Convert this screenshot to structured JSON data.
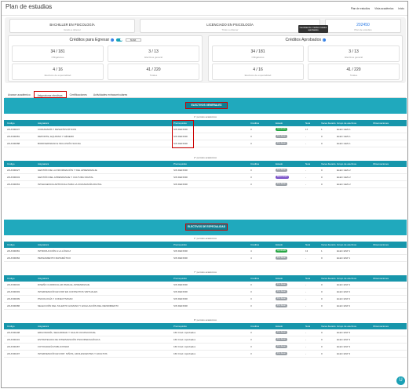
{
  "header": {
    "title": "Plan de estudios",
    "subtitle": "Vista académica",
    "links": [
      "Plan de estudios",
      "Vista académica",
      "Inicio"
    ]
  },
  "degrees": [
    {
      "title": "BACHILLER EN PSICOLOGÍA",
      "sub": "Grado a obtener"
    },
    {
      "title": "LICENCIADO EN PSICOLOGÍA",
      "sub": "Título a obtener"
    },
    {
      "code": "202450",
      "sub": "Plan de estudios"
    }
  ],
  "tooltip": "Cantidad de créditos totales aprobados",
  "credits_to_graduate": {
    "title": "Créditos para Egresar",
    "select": "SUMA",
    "stats": [
      {
        "value": "34 / 181",
        "label": "Obligatorios"
      },
      {
        "value": "3 / 13",
        "label": "Electivos general"
      },
      {
        "value": "4 / 16",
        "label": "Electivos de especialidad"
      },
      {
        "value": "41 / 220",
        "label": "Totales"
      }
    ]
  },
  "credits_approved": {
    "title": "Créditos Aprobados",
    "stats": [
      {
        "value": "34 / 181",
        "label": "Obligatorios"
      },
      {
        "value": "3 / 13",
        "label": "Electivos general"
      },
      {
        "value": "4 / 16",
        "label": "Electivos de especialidad"
      },
      {
        "value": "41 / 220",
        "label": "Totales"
      }
    ]
  },
  "tabs": [
    "Avance académico",
    "Asignaturas electivas",
    "Certificaciones",
    "Actividades extracurriculares"
  ],
  "columns": [
    "Código",
    "Asignatura",
    "Prerrequisito",
    "Créditos",
    "Estado",
    "Nota",
    "Veces llevado",
    "Grupo de electivos",
    "Observaciones"
  ],
  "sections": [
    {
      "category": "ELECTIVOS GENERALES",
      "blocks": [
        {
          "period": "1° período académico",
          "rows": [
            {
              "code": "24UO00037",
              "name": "CIUDADANÍA Y DESAFÍOS ÉTICOS",
              "prereq": "SIN DEFINIR",
              "credits": "3",
              "status": "Aprobado",
              "status_color": "#28a745",
              "grade": "17",
              "times": "1",
              "group": "ELEC GEN 1"
            },
            {
              "code": "24UO00081",
              "name": "DEPORTE, EQUIDAD Y GÉNERO",
              "prereq": "SIN DEFINIR",
              "credits": "3",
              "status": "Por llevar",
              "status_color": "#9aa0a6",
              "grade": "-",
              "times": "0",
              "group": "ELEC GEN 1"
            },
            {
              "code": "24UO00088",
              "name": "BIODIVERSIDAD E INCLUSIÓN SOCIAL",
              "prereq": "SIN DEFINIR",
              "credits": "3",
              "status": "Por llevar",
              "status_color": "#9aa0a6",
              "grade": "-",
              "times": "0",
              "group": "ELEC GEN 1"
            }
          ]
        },
        {
          "period": "2° período académico",
          "rows": [
            {
              "code": "24UO00027",
              "name": "GESTIÓN DE LA INFORMACIÓN Y DEL APRENDIZAJE",
              "prereq": "SIN DEFINIR",
              "credits": "3",
              "status": "Por llevar",
              "status_color": "#9aa0a6",
              "grade": "-",
              "times": "0",
              "group": "ELEC GEN 2"
            },
            {
              "code": "24UO00043",
              "name": "GESTIÓN DEL APRENDIZAJE Y CULTURA DIGITAL",
              "prereq": "SIN DEFINIR",
              "credits": "3",
              "status": "Matriculado",
              "status_color": "#7a52c7",
              "grade": "-",
              "times": "0",
              "group": "ELEC GEN 2"
            },
            {
              "code": "24UO00063",
              "name": "INTELIGENCIA ARTIFICIAL PARA LA CIUDADANÍA DIGITAL",
              "prereq": "SIN DEFINIR",
              "credits": "3",
              "status": "Por llevar",
              "status_color": "#9aa0a6",
              "grade": "-",
              "times": "0",
              "group": "ELEC GEN 2"
            }
          ]
        }
      ]
    },
    {
      "category": "ELECTIVOS DE ESPECIALIDAD",
      "blocks": [
        {
          "period": "1° período académico",
          "rows": [
            {
              "code": "24UO00081",
              "name": "INTRODUCCIÓN A LA LÓGICA",
              "prereq": "SIN DEFINIR",
              "credits": "4",
              "status": "Aprobado",
              "status_color": "#28a745",
              "grade": "13",
              "times": "1",
              "group": "ELEC ESP 1"
            },
            {
              "code": "24UO00084",
              "name": "PENSAMIENTO MATEMÁTICO",
              "prereq": "SIN DEFINIR",
              "credits": "4",
              "status": "Por llevar",
              "status_color": "#9aa0a6",
              "grade": "-",
              "times": "0",
              "group": "ELEC ESP 1"
            }
          ]
        },
        {
          "period": "7° período académico",
          "rows": [
            {
              "code": "24UO00032",
              "name": "DISEÑO CURRICULAR PARA EL APRENDIZAJE",
              "prereq": "SIN DEFINIR",
              "credits": "3",
              "status": "Por llevar",
              "status_color": "#9aa0a6",
              "grade": "-",
              "times": "0",
              "group": "ELEC ESP 2"
            },
            {
              "code": "24UO00093",
              "name": "INTERVENCIÓN EN PAP EN CONTEXTOS VIRTUALES",
              "prereq": "SIN DEFINIR",
              "credits": "3",
              "status": "Por llevar",
              "status_color": "#9aa0a6",
              "grade": "-",
              "times": "0",
              "group": "ELEC ESP 2"
            },
            {
              "code": "24UO00099",
              "name": "PSICOLOGÍA Y CONECTIVIDAD",
              "prereq": "SIN DEFINIR",
              "credits": "3",
              "status": "Por llevar",
              "status_color": "#9aa0a6",
              "grade": "-",
              "times": "0",
              "group": "ELEC ESP 2"
            },
            {
              "code": "24UO00086",
              "name": "SELECCIÓN DEL TALENTO HUMANO Y EVALUACIÓN DEL RENDIMIENTO",
              "prereq": "SIN DEFINIR",
              "credits": "3",
              "status": "Por llevar",
              "status_color": "#9aa0a6",
              "grade": "-",
              "times": "0",
              "group": "ELEC ESP 2"
            }
          ]
        },
        {
          "period": "8° período académico",
          "rows": [
            {
              "code": "24UO00408",
              "name": "ERGONOMÍA, SEGURIDAD Y SALUD OCUPACIONAL",
              "prereq": "160 Créd. Aprobados",
              "credits": "3",
              "status": "Por llevar",
              "status_color": "#9aa0a6",
              "grade": "-",
              "times": "0",
              "group": "ELEC ESP 3"
            },
            {
              "code": "24UO00401",
              "name": "ESTRATEGIAS DE INTERVENCIÓN PSICOPEDAGÓGICA",
              "prereq": "160 Créd. Aprobados",
              "credits": "3",
              "status": "Por llevar",
              "status_color": "#9aa0a6",
              "grade": "-",
              "times": "0",
              "group": "ELEC ESP 3"
            },
            {
              "code": "24UO00487",
              "name": "FOTOGRAFÍA PUBLICITARIA",
              "prereq": "160 Créd. Aprobados",
              "credits": "3",
              "status": "Por llevar",
              "status_color": "#9aa0a6",
              "grade": "-",
              "times": "0",
              "group": "ELEC ESP 3"
            },
            {
              "code": "24UO00497",
              "name": "INTERVENCIÓN EN PAP: NIÑOS, ADOLESCENTES Y ADULTOS",
              "prereq": "160 Créd. Aprobados",
              "credits": "3",
              "status": "Por llevar",
              "status_color": "#9aa0a6",
              "grade": "-",
              "times": "0",
              "group": "ELEC ESP 3"
            }
          ]
        }
      ]
    }
  ]
}
